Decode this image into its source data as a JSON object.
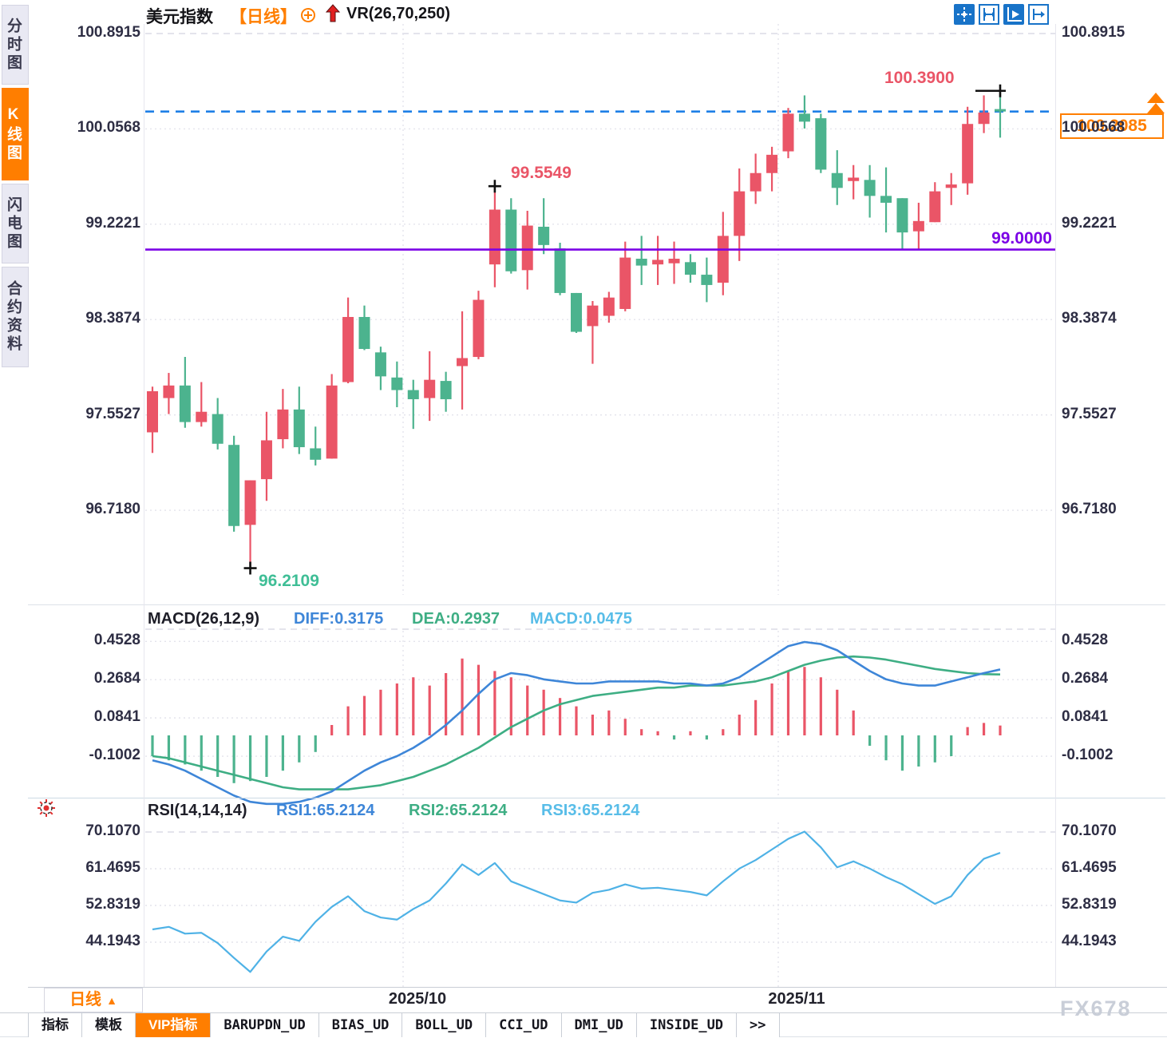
{
  "sidebar": {
    "tabs": [
      {
        "label": "分时图",
        "active": false
      },
      {
        "label": "K线图",
        "active": true
      },
      {
        "label": "闪电图",
        "active": false
      },
      {
        "label": "合约资料",
        "active": false
      }
    ]
  },
  "header": {
    "symbol": "美元指数",
    "period_tag": "【日线】",
    "indicator": "VR(26,70,250)"
  },
  "toolbar": {
    "icons": [
      "pan",
      "fit-horizontal",
      "auto-scale",
      "scroll-to-end"
    ]
  },
  "annotations": {
    "high_label": "100.3900",
    "swing_high_label": "99.5549",
    "swing_low_label": "96.2109",
    "support_label": "99.0000",
    "last_price_label": "100.2085"
  },
  "macd_header": {
    "title": "MACD(26,12,9)",
    "diff_label": "DIFF:0.3175",
    "dea_label": "DEA:0.2937",
    "macd_label": "MACD:0.0475"
  },
  "rsi_header": {
    "title": "RSI(14,14,14)",
    "rsi1_label": "RSI1:65.2124",
    "rsi2_label": "RSI2:65.2124",
    "rsi3_label": "RSI3:65.2124"
  },
  "xaxis": {
    "labels": [
      "2025/10",
      "2025/11"
    ],
    "period_label": "日线"
  },
  "bottom_tabs": [
    {
      "label": "指标",
      "active": false
    },
    {
      "label": "模板",
      "active": false
    },
    {
      "label": "VIP指标",
      "active": true
    },
    {
      "label": "BARUPDN_UD",
      "active": false
    },
    {
      "label": "BIAS_UD",
      "active": false
    },
    {
      "label": "BOLL_UD",
      "active": false
    },
    {
      "label": "CCI_UD",
      "active": false
    },
    {
      "label": "DMI_UD",
      "active": false
    },
    {
      "label": "INSIDE_UD",
      "active": false
    },
    {
      "label": ">>",
      "active": false
    }
  ],
  "watermark": "FX678",
  "colors": {
    "up": "#EA5567",
    "down": "#4CB38E",
    "accent_orange": "#FF7E00",
    "support_purple": "#7B00E6",
    "last_price_blue": "#1E7FE6",
    "diff_blue": "#3E86D8",
    "dea_green": "#3EAE84",
    "macd_cyan": "#58BDE8",
    "rsi_line": "#4FB2E6",
    "marker_black": "#111111"
  },
  "chart_data": [
    {
      "type": "candlestick",
      "title": "美元指数 日线",
      "yticks": [
        100.8915,
        100.0568,
        99.2221,
        98.3874,
        97.5527,
        96.718
      ],
      "x_gridline_labels": [
        "2025/10",
        "2025/11"
      ],
      "support_line": 99.0,
      "last_price": 100.2085,
      "marked_high": {
        "index": 52,
        "value": 100.39
      },
      "marked_swing_high": {
        "index": 21,
        "value": 99.5549
      },
      "marked_swing_low": {
        "index": 6,
        "value": 96.2109
      },
      "candles": [
        [
          97.4,
          97.8,
          97.22,
          97.76
        ],
        [
          97.7,
          97.92,
          97.56,
          97.81
        ],
        [
          97.81,
          98.06,
          97.44,
          97.49
        ],
        [
          97.49,
          97.84,
          97.45,
          97.58
        ],
        [
          97.56,
          97.7,
          97.25,
          97.3
        ],
        [
          97.29,
          97.37,
          96.53,
          96.58
        ],
        [
          96.59,
          96.98,
          96.21,
          96.98
        ],
        [
          96.99,
          97.58,
          96.8,
          97.33
        ],
        [
          97.34,
          97.78,
          97.26,
          97.6
        ],
        [
          97.6,
          97.8,
          97.21,
          97.27
        ],
        [
          97.26,
          97.45,
          97.11,
          97.16
        ],
        [
          97.17,
          97.91,
          97.17,
          97.81
        ],
        [
          97.84,
          98.58,
          97.83,
          98.41
        ],
        [
          98.41,
          98.51,
          98.12,
          98.13
        ],
        [
          98.1,
          98.15,
          97.77,
          97.89
        ],
        [
          97.88,
          98.02,
          97.62,
          97.77
        ],
        [
          97.77,
          97.86,
          97.43,
          97.69
        ],
        [
          97.7,
          98.11,
          97.5,
          97.86
        ],
        [
          97.85,
          97.93,
          97.58,
          97.69
        ],
        [
          97.98,
          98.46,
          97.6,
          98.05
        ],
        [
          98.06,
          98.64,
          98.04,
          98.56
        ],
        [
          98.87,
          99.5549,
          98.67,
          99.35
        ],
        [
          99.35,
          99.45,
          98.79,
          98.81
        ],
        [
          98.82,
          99.34,
          98.65,
          99.21
        ],
        [
          99.2,
          99.45,
          98.96,
          99.04
        ],
        [
          99.01,
          99.06,
          98.6,
          98.62
        ],
        [
          98.62,
          98.62,
          98.27,
          98.28
        ],
        [
          98.33,
          98.55,
          98.0,
          98.51
        ],
        [
          98.42,
          98.63,
          98.36,
          98.58
        ],
        [
          98.48,
          99.07,
          98.46,
          98.93
        ],
        [
          98.92,
          99.12,
          98.69,
          98.86
        ],
        [
          98.87,
          99.12,
          98.69,
          98.91
        ],
        [
          98.88,
          99.07,
          98.7,
          98.92
        ],
        [
          98.89,
          98.96,
          98.71,
          98.78
        ],
        [
          98.78,
          98.93,
          98.54,
          98.69
        ],
        [
          98.71,
          99.33,
          98.6,
          99.12
        ],
        [
          99.12,
          99.71,
          98.9,
          99.51
        ],
        [
          99.51,
          99.84,
          99.4,
          99.67
        ],
        [
          99.67,
          99.9,
          99.51,
          99.83
        ],
        [
          99.86,
          100.24,
          99.8,
          100.19
        ],
        [
          100.19,
          100.35,
          100.06,
          100.12
        ],
        [
          100.15,
          100.19,
          99.67,
          99.7
        ],
        [
          99.67,
          99.87,
          99.39,
          99.54
        ],
        [
          99.6,
          99.74,
          99.44,
          99.63
        ],
        [
          99.61,
          99.74,
          99.28,
          99.47
        ],
        [
          99.47,
          99.72,
          99.15,
          99.41
        ],
        [
          99.45,
          99.45,
          99.0,
          99.15
        ],
        [
          99.16,
          99.41,
          99.0,
          99.25
        ],
        [
          99.24,
          99.59,
          99.24,
          99.51
        ],
        [
          99.54,
          99.67,
          99.39,
          99.57
        ],
        [
          99.58,
          100.25,
          99.48,
          100.1
        ],
        [
          100.1,
          100.35,
          100.02,
          100.2
        ],
        [
          100.23,
          100.39,
          99.98,
          100.2085
        ]
      ]
    },
    {
      "type": "bar+line",
      "title": "MACD(26,12,9)",
      "yticks": [
        0.4528,
        0.2684,
        0.0841,
        -0.1002
      ],
      "diff": [
        -0.12,
        -0.14,
        -0.17,
        -0.21,
        -0.25,
        -0.29,
        -0.32,
        -0.33,
        -0.33,
        -0.32,
        -0.3,
        -0.27,
        -0.22,
        -0.17,
        -0.13,
        -0.1,
        -0.06,
        -0.01,
        0.05,
        0.12,
        0.2,
        0.27,
        0.3,
        0.29,
        0.27,
        0.26,
        0.25,
        0.25,
        0.26,
        0.26,
        0.26,
        0.26,
        0.25,
        0.25,
        0.24,
        0.25,
        0.28,
        0.33,
        0.38,
        0.43,
        0.45,
        0.44,
        0.41,
        0.36,
        0.31,
        0.27,
        0.25,
        0.24,
        0.24,
        0.26,
        0.28,
        0.3,
        0.3175
      ],
      "dea": [
        -0.1,
        -0.11,
        -0.13,
        -0.15,
        -0.17,
        -0.19,
        -0.21,
        -0.23,
        -0.25,
        -0.26,
        -0.26,
        -0.26,
        -0.26,
        -0.25,
        -0.24,
        -0.22,
        -0.2,
        -0.17,
        -0.14,
        -0.1,
        -0.06,
        -0.01,
        0.04,
        0.08,
        0.12,
        0.15,
        0.17,
        0.19,
        0.2,
        0.21,
        0.22,
        0.23,
        0.23,
        0.24,
        0.24,
        0.24,
        0.25,
        0.26,
        0.28,
        0.31,
        0.34,
        0.36,
        0.375,
        0.38,
        0.375,
        0.365,
        0.35,
        0.335,
        0.32,
        0.31,
        0.3,
        0.295,
        0.2937
      ],
      "hist": [
        -0.1,
        -0.12,
        -0.14,
        -0.17,
        -0.2,
        -0.23,
        -0.22,
        -0.2,
        -0.17,
        -0.13,
        -0.08,
        0.05,
        0.14,
        0.19,
        0.22,
        0.25,
        0.28,
        0.24,
        0.3,
        0.37,
        0.34,
        0.31,
        0.28,
        0.24,
        0.22,
        0.18,
        0.14,
        0.1,
        0.12,
        0.08,
        0.03,
        0.02,
        -0.02,
        0.02,
        -0.02,
        0.03,
        0.1,
        0.17,
        0.25,
        0.31,
        0.33,
        0.28,
        0.22,
        0.12,
        -0.05,
        -0.12,
        -0.17,
        -0.15,
        -0.13,
        -0.1,
        0.04,
        0.06,
        0.0475
      ]
    },
    {
      "type": "line",
      "title": "RSI(14,14,14)",
      "yticks": [
        70.107,
        61.4695,
        52.8319,
        44.1943
      ],
      "values": [
        47.2,
        47.8,
        46.2,
        46.4,
        44.0,
        40.5,
        37.2,
        42.0,
        45.5,
        44.5,
        49.0,
        52.5,
        55.0,
        51.5,
        50.0,
        49.5,
        52.0,
        54.0,
        58.0,
        62.5,
        60.0,
        62.8,
        58.5,
        57.0,
        55.5,
        54.0,
        53.5,
        55.8,
        56.5,
        57.8,
        56.8,
        57.0,
        56.5,
        56.0,
        55.2,
        58.5,
        61.5,
        63.5,
        66.0,
        68.5,
        70.2,
        66.5,
        61.8,
        63.2,
        61.5,
        59.5,
        57.8,
        55.5,
        53.2,
        55.0,
        60.0,
        63.8,
        65.2124
      ]
    }
  ]
}
